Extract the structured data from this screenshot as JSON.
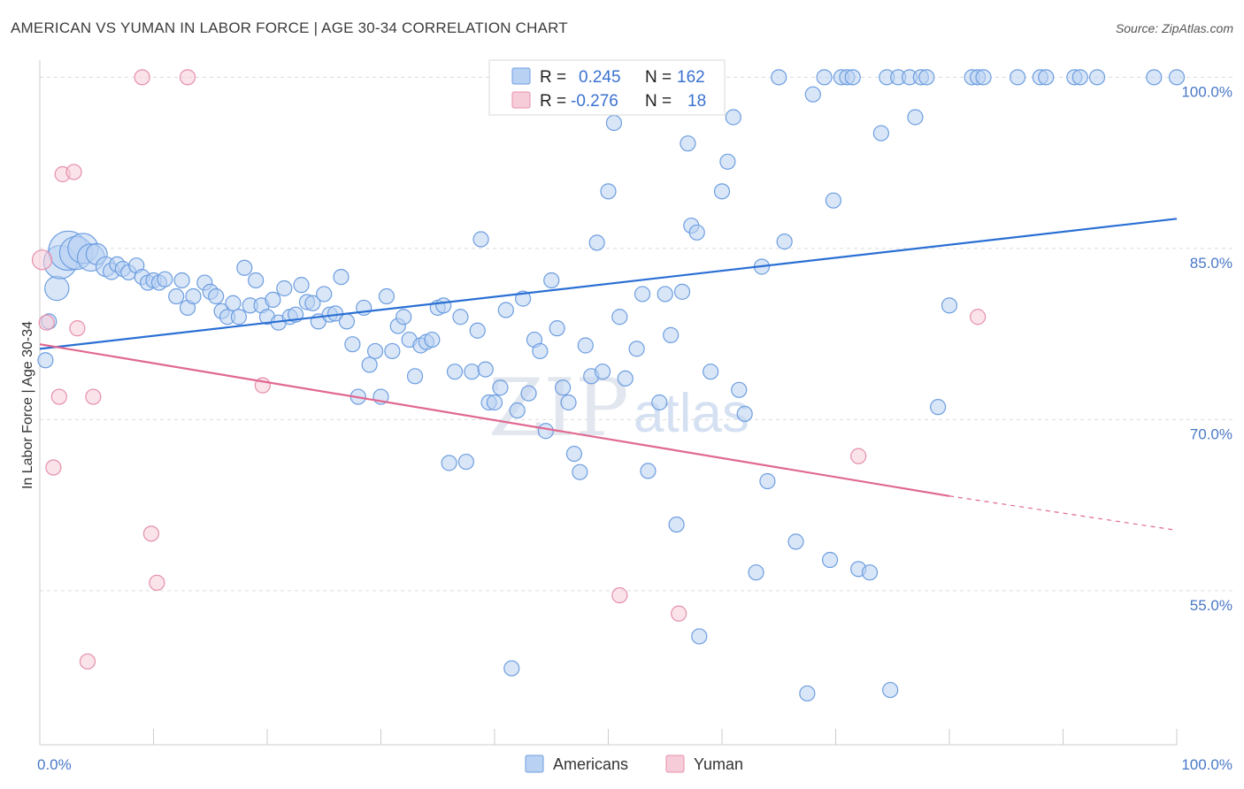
{
  "title": "AMERICAN VS YUMAN IN LABOR FORCE | AGE 30-34 CORRELATION CHART",
  "source": "Source: ZipAtlas.com",
  "watermark": {
    "zip": "ZIP",
    "atlas": "atlas"
  },
  "colors": {
    "americans": "#6d9ee0",
    "americans_fill": "#b9d1f2",
    "americans_line": "#2a6fd4",
    "yuman": "#e58fab",
    "yuman_fill": "#f7ccd9",
    "yuman_line": "#e0688f"
  },
  "legend": {
    "rows": [
      {
        "r_label": "R =",
        "r_value": "0.245",
        "n_label": "N =",
        "n_value": "162"
      },
      {
        "r_label": "R =",
        "r_value": "-0.276",
        "n_label": "N =",
        "n_value": "18"
      }
    ]
  },
  "bottom_legend": [
    "Americans",
    "Yuman"
  ],
  "chart_data": {
    "type": "scatter",
    "ylabel": "In Labor Force | Age 30-34",
    "xlim": [
      0,
      100
    ],
    "ylim": [
      41.5,
      101.5
    ],
    "x_tick_labels": [
      {
        "x": 0,
        "label": "0.0%"
      },
      {
        "x": 100,
        "label": "100.0%"
      }
    ],
    "y_tick_labels": [
      {
        "y": 100,
        "label": "100.0%"
      },
      {
        "y": 85,
        "label": "85.0%"
      },
      {
        "y": 70,
        "label": "70.0%"
      },
      {
        "y": 55,
        "label": "55.0%"
      }
    ],
    "grid": true,
    "series": [
      {
        "name": "Americans",
        "trend": {
          "x": [
            0,
            100
          ],
          "y": [
            76.2,
            87.6
          ]
        },
        "points": [
          [
            0.5,
            75.2,
            1
          ],
          [
            0.8,
            78.6,
            1
          ],
          [
            1.5,
            81.5,
            1.6
          ],
          [
            1.8,
            83.8,
            2.2
          ],
          [
            2.5,
            84.8,
            2.6
          ],
          [
            3.2,
            84.6,
            2.2
          ],
          [
            3.8,
            85.0,
            2
          ],
          [
            4.5,
            84.2,
            1.8
          ],
          [
            5.0,
            84.5,
            1.4
          ],
          [
            5.8,
            83.4,
            1.3
          ],
          [
            6.3,
            83.0,
            1.1
          ],
          [
            6.8,
            83.6,
            1
          ],
          [
            7.3,
            83.2,
            1
          ],
          [
            7.8,
            82.9,
            1
          ],
          [
            8.5,
            83.5,
            1
          ],
          [
            9.0,
            82.5,
            1
          ],
          [
            9.5,
            82.0,
            1
          ],
          [
            10.0,
            82.2,
            1
          ],
          [
            10.5,
            82.0,
            1
          ],
          [
            11.0,
            82.3,
            1
          ],
          [
            12.0,
            80.8,
            1
          ],
          [
            12.5,
            82.2,
            1
          ],
          [
            13.0,
            79.8,
            1
          ],
          [
            13.5,
            80.8,
            1
          ],
          [
            14.5,
            82.0,
            1
          ],
          [
            15.0,
            81.2,
            1
          ],
          [
            15.5,
            80.8,
            1
          ],
          [
            16.0,
            79.5,
            1
          ],
          [
            16.5,
            79.0,
            1
          ],
          [
            17.0,
            80.2,
            1
          ],
          [
            17.5,
            79.0,
            1
          ],
          [
            18.0,
            83.3,
            1
          ],
          [
            18.5,
            80.0,
            1
          ],
          [
            19.0,
            82.2,
            1
          ],
          [
            19.5,
            80.0,
            1
          ],
          [
            20.0,
            79.0,
            1
          ],
          [
            20.5,
            80.5,
            1
          ],
          [
            21.0,
            78.5,
            1
          ],
          [
            21.5,
            81.5,
            1
          ],
          [
            22.0,
            79.0,
            1
          ],
          [
            22.5,
            79.2,
            1
          ],
          [
            23.0,
            81.8,
            1
          ],
          [
            23.5,
            80.3,
            1
          ],
          [
            24.0,
            80.2,
            1
          ],
          [
            24.5,
            78.6,
            1
          ],
          [
            25.0,
            81.0,
            1
          ],
          [
            25.5,
            79.2,
            1
          ],
          [
            26.0,
            79.3,
            1
          ],
          [
            26.5,
            82.5,
            1
          ],
          [
            27.0,
            78.6,
            1
          ],
          [
            27.5,
            76.6,
            1
          ],
          [
            28.0,
            72.0,
            1
          ],
          [
            28.5,
            79.8,
            1
          ],
          [
            29.0,
            74.8,
            1
          ],
          [
            29.5,
            76.0,
            1
          ],
          [
            30.0,
            72.0,
            1
          ],
          [
            30.5,
            80.8,
            1
          ],
          [
            31.0,
            76.0,
            1
          ],
          [
            31.5,
            78.2,
            1
          ],
          [
            32.0,
            79.0,
            1
          ],
          [
            32.5,
            77.0,
            1
          ],
          [
            33.0,
            73.8,
            1
          ],
          [
            33.5,
            76.5,
            1
          ],
          [
            34.0,
            76.8,
            1
          ],
          [
            34.5,
            77.0,
            1
          ],
          [
            35.0,
            79.8,
            1
          ],
          [
            35.5,
            80.0,
            1
          ],
          [
            36.0,
            66.2,
            1
          ],
          [
            36.5,
            74.2,
            1
          ],
          [
            37.0,
            79.0,
            1
          ],
          [
            37.5,
            66.3,
            1
          ],
          [
            38.0,
            74.2,
            1
          ],
          [
            38.5,
            77.8,
            1
          ],
          [
            38.8,
            85.8,
            1
          ],
          [
            39.2,
            74.4,
            1
          ],
          [
            39.5,
            71.5,
            1
          ],
          [
            40.0,
            71.5,
            1
          ],
          [
            40.5,
            72.8,
            1
          ],
          [
            41.0,
            79.6,
            1
          ],
          [
            41.5,
            48.2,
            1
          ],
          [
            42.0,
            70.8,
            1
          ],
          [
            42.5,
            80.6,
            1
          ],
          [
            43.0,
            72.3,
            1
          ],
          [
            43.5,
            77.0,
            1
          ],
          [
            44.0,
            76.0,
            1
          ],
          [
            44.5,
            69.0,
            1
          ],
          [
            45.0,
            82.2,
            1
          ],
          [
            45.5,
            78.0,
            1
          ],
          [
            46.0,
            72.8,
            1
          ],
          [
            46.5,
            71.5,
            1
          ],
          [
            47.0,
            67.0,
            1
          ],
          [
            47.5,
            65.4,
            1
          ],
          [
            48.0,
            76.5,
            1
          ],
          [
            48.5,
            73.8,
            1
          ],
          [
            49.0,
            85.5,
            1
          ],
          [
            49.5,
            74.2,
            1
          ],
          [
            50.0,
            90.0,
            1
          ],
          [
            50.5,
            96.0,
            1
          ],
          [
            51.0,
            79.0,
            1
          ],
          [
            51.5,
            73.6,
            1
          ],
          [
            52.0,
            100.0,
            1
          ],
          [
            52.5,
            76.2,
            1
          ],
          [
            53.0,
            81.0,
            1
          ],
          [
            53.5,
            65.5,
            1
          ],
          [
            54.0,
            100.0,
            1
          ],
          [
            54.5,
            71.5,
            1
          ],
          [
            55.0,
            81.0,
            1
          ],
          [
            55.5,
            77.4,
            1
          ],
          [
            56.0,
            60.8,
            1
          ],
          [
            56.5,
            81.2,
            1
          ],
          [
            57.0,
            94.2,
            1
          ],
          [
            57.3,
            87.0,
            1
          ],
          [
            57.8,
            86.4,
            1
          ],
          [
            58.0,
            51.0,
            1
          ],
          [
            58.5,
            100.0,
            1
          ],
          [
            59.0,
            74.2,
            1
          ],
          [
            60.0,
            90.0,
            1
          ],
          [
            60.5,
            92.6,
            1
          ],
          [
            61.0,
            96.5,
            1
          ],
          [
            61.5,
            72.6,
            1
          ],
          [
            62.0,
            70.5,
            1
          ],
          [
            63.0,
            56.6,
            1
          ],
          [
            63.5,
            83.4,
            1
          ],
          [
            64.0,
            64.6,
            1
          ],
          [
            65.0,
            100.0,
            1
          ],
          [
            65.5,
            85.6,
            1
          ],
          [
            66.5,
            59.3,
            1
          ],
          [
            67.5,
            46.0,
            1
          ],
          [
            68.0,
            98.5,
            1
          ],
          [
            69.0,
            100.0,
            1
          ],
          [
            69.5,
            57.7,
            1
          ],
          [
            69.8,
            89.2,
            1
          ],
          [
            70.5,
            100.0,
            1
          ],
          [
            71.0,
            100.0,
            1
          ],
          [
            71.5,
            100.0,
            1
          ],
          [
            72.0,
            56.9,
            1
          ],
          [
            73.0,
            56.6,
            1
          ],
          [
            74.0,
            95.1,
            1
          ],
          [
            74.5,
            100.0,
            1
          ],
          [
            74.8,
            46.3,
            1
          ],
          [
            75.5,
            100.0,
            1
          ],
          [
            76.5,
            100.0,
            1
          ],
          [
            77.0,
            96.5,
            1
          ],
          [
            77.5,
            100.0,
            1
          ],
          [
            78.0,
            100.0,
            1
          ],
          [
            79.0,
            71.1,
            1
          ],
          [
            80.0,
            80.0,
            1
          ],
          [
            82.0,
            100.0,
            1
          ],
          [
            82.5,
            100.0,
            1
          ],
          [
            83.0,
            100.0,
            1
          ],
          [
            86.0,
            100.0,
            1
          ],
          [
            88.0,
            100.0,
            1
          ],
          [
            88.5,
            100.0,
            1
          ],
          [
            91.0,
            100.0,
            1
          ],
          [
            91.5,
            100.0,
            1
          ],
          [
            93.0,
            100.0,
            1
          ],
          [
            98.0,
            100.0,
            1
          ],
          [
            100.0,
            100.0,
            1
          ]
        ]
      },
      {
        "name": "Yuman",
        "trend": {
          "x": [
            0,
            80
          ],
          "y": [
            76.6,
            63.3
          ]
        },
        "trend_dashed": {
          "x": [
            80,
            100
          ],
          "y": [
            63.3,
            60.3
          ]
        },
        "points": [
          [
            0.2,
            84.0,
            1.3
          ],
          [
            0.6,
            78.5,
            1
          ],
          [
            1.2,
            65.8,
            1
          ],
          [
            1.7,
            72.0,
            1
          ],
          [
            2.0,
            91.5,
            1
          ],
          [
            3.0,
            91.7,
            1
          ],
          [
            3.3,
            78.0,
            1
          ],
          [
            4.2,
            48.8,
            1
          ],
          [
            4.7,
            72.0,
            1
          ],
          [
            9.0,
            100.0,
            1
          ],
          [
            9.8,
            60.0,
            1
          ],
          [
            10.3,
            55.7,
            1
          ],
          [
            13.0,
            100.0,
            1
          ],
          [
            19.6,
            73.0,
            1
          ],
          [
            51.0,
            54.6,
            1
          ],
          [
            56.2,
            53.0,
            1
          ],
          [
            72.0,
            66.8,
            1
          ],
          [
            82.5,
            79.0,
            1
          ]
        ]
      }
    ]
  }
}
